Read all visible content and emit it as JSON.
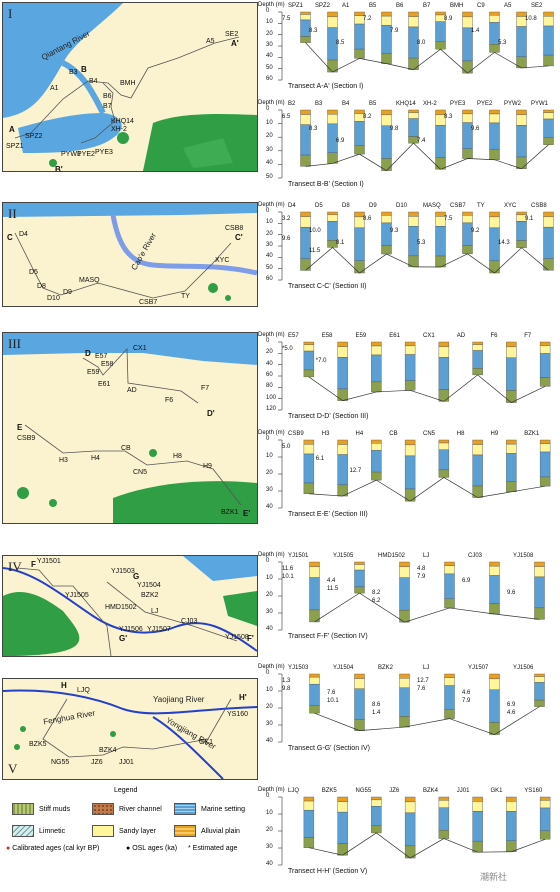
{
  "maps": [
    {
      "roman": "I",
      "rivers": [
        "Qiantang River"
      ],
      "points": [
        "SE2",
        "A",
        "A'",
        "A5",
        "B",
        "B'",
        "B3",
        "B4",
        "B6",
        "B7",
        "BMH",
        "SPZ1",
        "SPZ2",
        "A1",
        "KHQ14",
        "XH-2",
        "PYW1",
        "PYE2",
        "PYE3"
      ]
    },
    {
      "roman": "II",
      "rivers": [
        "Cao'e River"
      ],
      "points": [
        "C",
        "C'",
        "D4",
        "D5",
        "D8",
        "D9",
        "D10",
        "MASQ",
        "CSB7",
        "CSB8",
        "TY",
        "XYC"
      ]
    },
    {
      "roman": "III",
      "rivers": [],
      "points": [
        "D",
        "D'",
        "E",
        "E'",
        "E57",
        "E58",
        "E59",
        "E61",
        "CX1",
        "AD",
        "F6",
        "F7",
        "CSB9",
        "H3",
        "H4",
        "CB",
        "CN5",
        "H8",
        "H9",
        "BZK1"
      ]
    },
    {
      "roman": "IV",
      "rivers": [],
      "points": [
        "F",
        "F'",
        "G",
        "G'",
        "YJ1501",
        "YJ1503",
        "YJ1505",
        "YJ1504",
        "BZK2",
        "HMD1502",
        "LJ",
        "CJ03",
        "YJ1506",
        "YJ1507",
        "YJ1508"
      ]
    },
    {
      "roman": "V",
      "rivers": [
        "Fenghua River",
        "Yaojiang River",
        "Yongjiang River"
      ],
      "points": [
        "H",
        "H'",
        "LJQ",
        "BZK5",
        "NG55",
        "JZ6",
        "BZK4",
        "JJ01",
        "GK1",
        "YS160"
      ]
    }
  ],
  "transects": [
    {
      "title": "Transect A-A' (Section I)",
      "cores": [
        "SPZ1",
        "SPZ2",
        "A1",
        "B5",
        "B6",
        "B7",
        "BMH",
        "C9",
        "A5",
        "SE2"
      ],
      "ticks": [
        "0",
        "10",
        "20",
        "30",
        "40",
        "50",
        "60"
      ],
      "ages": [
        "7.5",
        "8.3",
        "8.5",
        "7.2",
        "7.9",
        "8.0",
        "8.9",
        "1.4",
        "5.3",
        "10.8"
      ]
    },
    {
      "title": "Transect B-B' (Section I)",
      "cores": [
        "B2",
        "B3",
        "B4",
        "B5",
        "KHQ14",
        "XH-2",
        "PYE3",
        "PYE2",
        "PYW2",
        "PYW1"
      ],
      "ticks": [
        "0",
        "10",
        "20",
        "30",
        "40",
        "50"
      ],
      "ages": [
        "6.5",
        "8.3",
        "6.9",
        "8.2",
        "9.8",
        "7.4",
        "8.3",
        "9.6"
      ]
    },
    {
      "title": "Transect C-C' (Section II)",
      "cores": [
        "D4",
        "D5",
        "D8",
        "D9",
        "D10",
        "MASQ",
        "CSB7",
        "TY",
        "XYC",
        "CSB8"
      ],
      "ticks": [
        "0",
        "10",
        "20",
        "30",
        "40",
        "50",
        "60"
      ],
      "ages": [
        "3.2",
        "10.0",
        "8.1",
        "8.6",
        "9.3",
        "5.3",
        "7.5",
        "9.2",
        "14.3",
        "9.1",
        "9.6",
        "11.5"
      ]
    },
    {
      "title": "Transect D-D' (Section III)",
      "cores": [
        "E57",
        "E58",
        "E59",
        "E61",
        "CX1",
        "AD",
        "F6",
        "F7"
      ],
      "ticks": [
        "0",
        "20",
        "40",
        "60",
        "80",
        "100",
        "120"
      ],
      "ages": [
        "*5.0",
        "*7.0"
      ]
    },
    {
      "title": "Transect E-E' (Section III)",
      "cores": [
        "CSB9",
        "H3",
        "H4",
        "CB",
        "CN5",
        "H8",
        "H9",
        "BZK1"
      ],
      "ticks": [
        "0",
        "10",
        "20",
        "30",
        "40"
      ],
      "ages": [
        "5.0",
        "6.1",
        "12.7"
      ]
    },
    {
      "title": "Transect F-F' (Section IV)",
      "cores": [
        "YJ1501",
        "YJ1505",
        "HMD1502",
        "LJ",
        "CJ03",
        "YJ1508"
      ],
      "ticks": [
        "0",
        "10",
        "20",
        "30",
        "40"
      ],
      "ages": [
        "11.6",
        "4.4",
        "8.2",
        "4.8",
        "6.9",
        "9.6",
        "10.1",
        "11.5",
        "6.2",
        "7.9"
      ]
    },
    {
      "title": "Transect G-G' (Section IV)",
      "cores": [
        "YJ1503",
        "YJ1504",
        "BZK2",
        "LJ",
        "YJ1507",
        "YJ1506"
      ],
      "ticks": [
        "0",
        "10",
        "20",
        "30",
        "40"
      ],
      "ages": [
        "1.3",
        "7.6",
        "8.6",
        "12.7",
        "4.6",
        "6.9",
        "9.8",
        "10.1",
        "1.4",
        "7.6",
        "7.9",
        "4.6"
      ]
    },
    {
      "title": "Transect H-H' (Section V)",
      "cores": [
        "LJQ",
        "BZK5",
        "NG55",
        "JZ6",
        "BZK4",
        "JJ01",
        "GK1",
        "YS160"
      ],
      "ticks": [
        "0",
        "10",
        "20",
        "30",
        "40"
      ],
      "ages": []
    }
  ],
  "depth_label": "Depth (m)",
  "legend": {
    "heading": "Legend",
    "items": [
      "Stiff muds",
      "River channel",
      "Marine setting",
      "Limnetic",
      "Sandy layer",
      "Alluvial plain"
    ],
    "markers": [
      "Calibrated ages (cal kyr BP)",
      "OSL ages (ka)",
      "* Estimated age"
    ]
  },
  "watermark": "潮新社",
  "colors": {
    "sea": "#5aa6e0",
    "land": "#fbf3cf",
    "green": "#2f9e45",
    "marine": "#5b9fd3",
    "sandy": "#fff59a",
    "alluvial": "#e8a020",
    "river": "#b9632f",
    "stiff": "#8aa04c"
  }
}
